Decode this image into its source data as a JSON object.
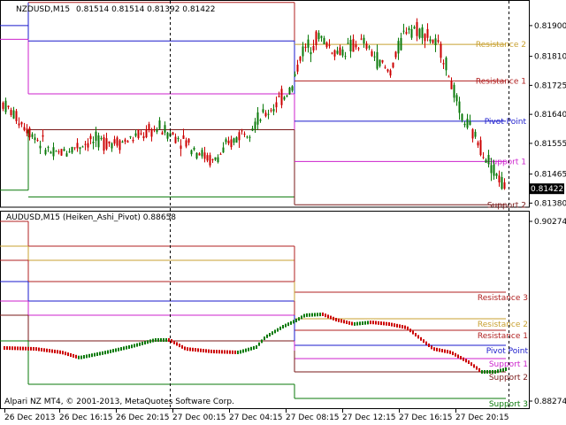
{
  "chart_data": [
    {
      "type": "candlestick",
      "title": "NZDUSD,M15",
      "ohlc_header": "0.81514 0.81514 0.81392 0.81422",
      "y_ticks": [
        "0.81900",
        "0.81810",
        "0.81725",
        "0.81640",
        "0.81555",
        "0.81465",
        "0.81380"
      ],
      "ylim": [
        0.81368,
        0.81975
      ],
      "last_price": "0.81422",
      "candles": [],
      "levels": [
        {
          "name": "Resistance 2",
          "color": "#c8a030",
          "value": 0.81845
        },
        {
          "name": "Resistance 1",
          "color": "#b02020",
          "value": 0.81738
        },
        {
          "name": "Pivot Point",
          "color": "#1a1acc",
          "value": 0.8162
        },
        {
          "name": "Support 1",
          "color": "#cc22cc",
          "value": 0.81502
        },
        {
          "name": "Support 2",
          "color": "#7a1a1a",
          "value": 0.81375
        }
      ],
      "levels_prev": {
        "resistance2": 0.81968,
        "resistance1": 0.81595,
        "pivot": 0.81855,
        "support1": 0.817,
        "support2": 0.81398
      },
      "levels_prev_old": {
        "pivot": 0.819,
        "support1": 0.8186,
        "support2": 0.81418
      },
      "legend": "labels drawn at right end of level lines"
    },
    {
      "type": "heiken-ashi",
      "title": "AUDUSD,M15 (Heiken_Ashi_Pivot) 0.88658",
      "y_ticks": [
        "0.90274",
        "0.88274"
      ],
      "levels": [
        {
          "name": "Resistance 3",
          "color": "#b02020"
        },
        {
          "name": "Resistance 2",
          "color": "#c8a030"
        },
        {
          "name": "Resistance 1",
          "color": "#b02020"
        },
        {
          "name": "Pivot Point",
          "color": "#1a1acc"
        },
        {
          "name": "Support 1",
          "color": "#cc22cc"
        },
        {
          "name": "Support 2",
          "color": "#7a1a1a"
        },
        {
          "name": "Support 3",
          "color": "#0a7a0a"
        }
      ]
    }
  ],
  "x_axis": {
    "labels": [
      "26 Dec 2013",
      "26 Dec 16:15",
      "26 Dec 20:15",
      "27 Dec 00:15",
      "27 Dec 04:15",
      "27 Dec 08:15",
      "27 Dec 12:15",
      "27 Dec 16:15",
      "27 Dec 20:15"
    ]
  },
  "copyright": "Alpari NZ MT4, © 2001-2013, MetaQuotes Software Corp.",
  "colors": {
    "bull": "#0a7a0a",
    "bear": "#cc0000",
    "frame": "#000000",
    "grid": "#000000"
  }
}
